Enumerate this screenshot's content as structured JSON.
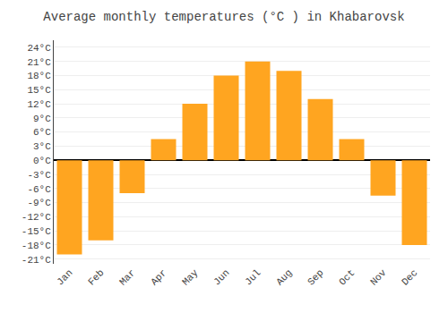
{
  "chart_data": {
    "type": "bar",
    "title": "Average monthly temperatures (°C ) in Khabarovsk",
    "categories": [
      "Jan",
      "Feb",
      "Mar",
      "Apr",
      "May",
      "Jun",
      "Jul",
      "Aug",
      "Sep",
      "Oct",
      "Nov",
      "Dec"
    ],
    "values": [
      -20,
      -17,
      -7,
      4.5,
      12,
      18,
      21,
      19,
      13,
      4.5,
      -7.5,
      -18
    ],
    "color": "#FFA520",
    "ylim": [
      -22,
      25.5
    ],
    "yticks": [
      {
        "value": -21,
        "label": "-21°C"
      },
      {
        "value": -18,
        "label": "-18°C"
      },
      {
        "value": -15,
        "label": "-15°C"
      },
      {
        "value": -12,
        "label": "-12°C"
      },
      {
        "value": -9,
        "label": "-9°C"
      },
      {
        "value": -6,
        "label": "-6°C"
      },
      {
        "value": -3,
        "label": "-3°C"
      },
      {
        "value": 0,
        "label": "0°C"
      },
      {
        "value": 3,
        "label": "3°C"
      },
      {
        "value": 6,
        "label": "6°C"
      },
      {
        "value": 9,
        "label": "9°C"
      },
      {
        "value": 12,
        "label": "12°C"
      },
      {
        "value": 15,
        "label": "15°C"
      },
      {
        "value": 18,
        "label": "18°C"
      },
      {
        "value": 21,
        "label": "21°C"
      },
      {
        "value": 24,
        "label": "24°C"
      }
    ],
    "grid": true
  }
}
